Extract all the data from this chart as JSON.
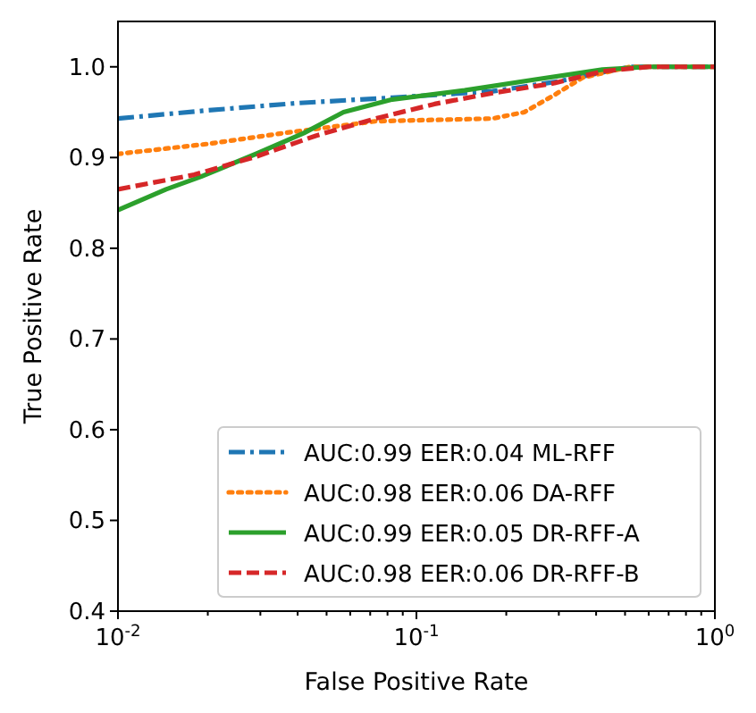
{
  "chart_data": {
    "type": "line",
    "xlabel": "False Positive Rate",
    "ylabel": "True Positive Rate",
    "log": "x",
    "xlim": [
      0.01,
      1
    ],
    "ylim": [
      0.4,
      1.05
    ],
    "xticks": [
      {
        "value": 0.01,
        "label": "10$^{-2}$"
      },
      {
        "value": 0.02,
        "label": null
      },
      {
        "value": 0.03,
        "label": null
      },
      {
        "value": 0.04,
        "label": null
      },
      {
        "value": 0.05,
        "label": null
      },
      {
        "value": 0.06,
        "label": null
      },
      {
        "value": 0.07,
        "label": null
      },
      {
        "value": 0.08,
        "label": null
      },
      {
        "value": 0.09,
        "label": null
      },
      {
        "value": 0.1,
        "label": "10$^{-1}$"
      },
      {
        "value": 0.2,
        "label": null
      },
      {
        "value": 0.3,
        "label": null
      },
      {
        "value": 0.4,
        "label": null
      },
      {
        "value": 0.5,
        "label": null
      },
      {
        "value": 0.6,
        "label": null
      },
      {
        "value": 0.7,
        "label": null
      },
      {
        "value": 0.8,
        "label": null
      },
      {
        "value": 0.9,
        "label": null
      },
      {
        "value": 1,
        "label": "10$^{0}$"
      }
    ],
    "yticks": [
      {
        "value": 0.4,
        "label": "0.4"
      },
      {
        "value": 0.5,
        "label": "0.5"
      },
      {
        "value": 0.6,
        "label": "0.6"
      },
      {
        "value": 0.7,
        "label": "0.7"
      },
      {
        "value": 0.8,
        "label": "0.8"
      },
      {
        "value": 0.9,
        "label": "0.9"
      },
      {
        "value": 1,
        "label": "1.0"
      }
    ],
    "grid": false,
    "legend": "bottom right",
    "series": [
      {
        "name": "AUC:0.99 EER:0.04 ML-RFF",
        "color": "#1f77b4",
        "line_style": "dashdot",
        "x": [
          0.01,
          0.02,
          0.04,
          0.083,
          0.18,
          0.3,
          0.52,
          1
        ],
        "values": [
          0.943,
          0.952,
          0.96,
          0.966,
          0.973,
          0.984,
          1,
          1
        ]
      },
      {
        "name": "AUC:0.98 EER:0.06 DA-RFF",
        "color": "#ff7f0e",
        "line_style": "dotted",
        "x": [
          0.01,
          0.02,
          0.036,
          0.073,
          0.18,
          0.23,
          0.29,
          0.36,
          0.52,
          1
        ],
        "values": [
          0.904,
          0.915,
          0.927,
          0.94,
          0.943,
          0.95,
          0.969,
          0.988,
          1,
          1
        ]
      },
      {
        "name": "AUC:0.99 EER:0.05 DR-RFF-A",
        "color": "#2ca02c",
        "line_style": "solid",
        "x": [
          0.01,
          0.0145,
          0.019,
          0.029,
          0.042,
          0.057,
          0.083,
          0.145,
          0.25,
          0.42,
          0.6,
          1
        ],
        "values": [
          0.842,
          0.865,
          0.879,
          0.904,
          0.927,
          0.95,
          0.964,
          0.974,
          0.986,
          0.997,
          1,
          1
        ]
      },
      {
        "name": "AUC:0.98 EER:0.06 DR-RFF-B",
        "color": "#d62728",
        "line_style": "dashed",
        "x": [
          0.01,
          0.018,
          0.029,
          0.046,
          0.073,
          0.115,
          0.18,
          0.29,
          0.42,
          0.6,
          1
        ],
        "values": [
          0.865,
          0.881,
          0.901,
          0.924,
          0.943,
          0.959,
          0.971,
          0.982,
          0.995,
          1,
          1
        ]
      }
    ]
  }
}
